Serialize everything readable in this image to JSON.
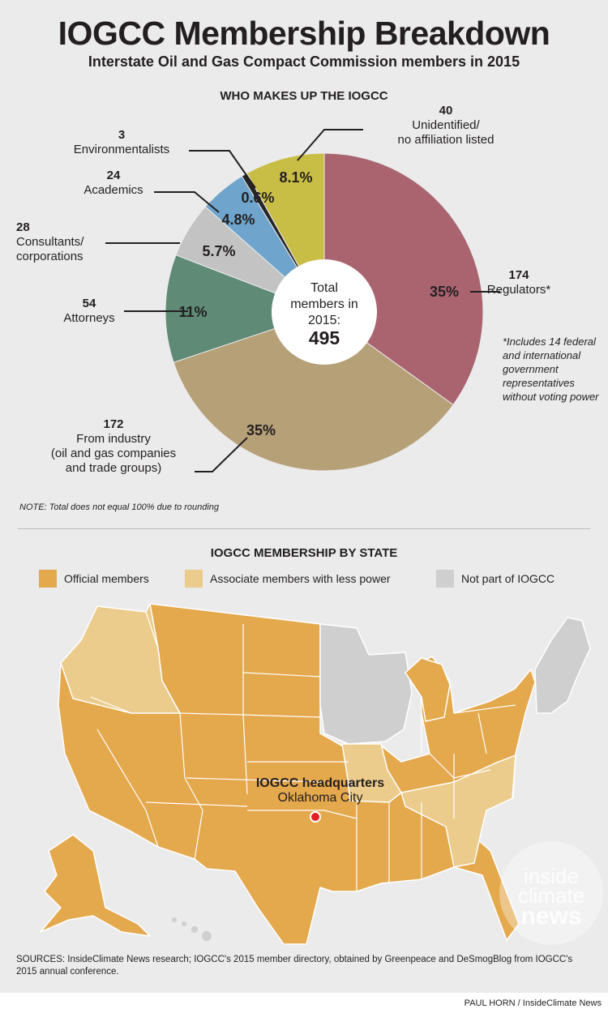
{
  "header": {
    "title": "IOGCC Membership Breakdown",
    "subtitle": "Interstate Oil and Gas Compact Commission members in 2015"
  },
  "chart_data": {
    "type": "pie",
    "title": "WHO MAKES UP THE IOGCC",
    "center_label": [
      "Total",
      "members in",
      "2015:"
    ],
    "center_value": "495",
    "slices": [
      {
        "name": "Regulators*",
        "count": "174",
        "value": 35,
        "label": "35%",
        "color": "#a96470"
      },
      {
        "name": "From industry (oil and gas companies and trade groups)",
        "count": "172",
        "value": 35,
        "label": "35%",
        "color": "#b6a077"
      },
      {
        "name": "Attorneys",
        "count": "54",
        "value": 11,
        "label": "11%",
        "color": "#5e8a76"
      },
      {
        "name": "Consultants/ corporations",
        "count": "28",
        "value": 5.7,
        "label": "5.7%",
        "color": "#c3c3c3"
      },
      {
        "name": "Academics",
        "count": "24",
        "value": 4.8,
        "label": "4.8%",
        "color": "#6fa5cc"
      },
      {
        "name": "Environmentalists",
        "count": "3",
        "value": 0.6,
        "label": "0.6%",
        "color": "#252525"
      },
      {
        "name": "Unidentified/ no affiliation listed",
        "count": "40",
        "value": 8.1,
        "label": "8.1%",
        "color": "#c8bd45"
      }
    ]
  },
  "callouts": {
    "regulators": {
      "count": "174",
      "name": "Regulators*"
    },
    "industry": {
      "count": "172",
      "line1": "From industry",
      "line2": "(oil and gas companies",
      "line3": "and trade groups)"
    },
    "attorneys": {
      "count": "54",
      "name": "Attorneys"
    },
    "consultants": {
      "count": "28",
      "line1": "Consultants/",
      "line2": "corporations"
    },
    "academics": {
      "count": "24",
      "name": "Academics"
    },
    "environmentalists": {
      "count": "3",
      "name": "Environmentalists"
    },
    "unidentified": {
      "count": "40",
      "line1": "Unidentified/",
      "line2": "no affiliation listed"
    }
  },
  "footnote": "*Includes 14 federal and international government representatives without voting power",
  "note": "NOTE: Total does not equal 100% due to rounding",
  "map": {
    "title": "IOGCC MEMBERSHIP BY STATE",
    "legend": [
      {
        "label": "Official members",
        "color": "#e4a84d"
      },
      {
        "label": "Associate members with less power",
        "color": "#ebcc8c"
      },
      {
        "label": "Not part of IOGCC",
        "color": "#cfcfcf"
      }
    ],
    "hq_label": "IOGCC headquarters",
    "hq_city": "Oklahoma City"
  },
  "logo": [
    "inside",
    "climate",
    "news"
  ],
  "sources": "SOURCES: InsideClimate News research; IOGCC's 2015 member directory, obtained by Greenpeace and DeSmogBlog from IOGCC's 2015 annual conference.",
  "credit": "PAUL HORN / InsideClimate News"
}
